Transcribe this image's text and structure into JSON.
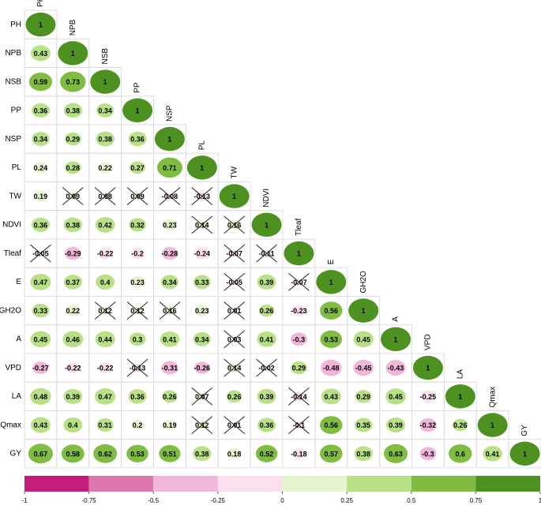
{
  "chart_data": {
    "type": "corrplot",
    "variables": [
      "PH",
      "NPB",
      "NSB",
      "PP",
      "NSP",
      "PL",
      "TW",
      "NDVI",
      "Tleaf",
      "E",
      "GH2O",
      "A",
      "VPD",
      "LA",
      "Qmax",
      "GY"
    ],
    "matrix": [
      [
        1
      ],
      [
        0.43,
        1
      ],
      [
        0.59,
        0.73,
        1
      ],
      [
        0.36,
        0.38,
        0.34,
        1
      ],
      [
        0.34,
        0.29,
        0.38,
        0.36,
        1
      ],
      [
        0.24,
        0.28,
        0.22,
        0.27,
        0.71,
        1
      ],
      [
        0.19,
        0.09,
        0.08,
        0.09,
        -0.08,
        -0.13,
        1
      ],
      [
        0.36,
        0.38,
        0.42,
        0.32,
        0.23,
        0.14,
        0.16,
        1
      ],
      [
        -0.05,
        -0.29,
        -0.22,
        -0.2,
        -0.28,
        -0.24,
        -0.07,
        -0.11,
        1
      ],
      [
        0.47,
        0.37,
        0.4,
        0.23,
        0.34,
        0.33,
        -0.05,
        0.39,
        -0.07,
        1
      ],
      [
        0.33,
        0.22,
        0.12,
        0.12,
        0.16,
        0.23,
        0.01,
        0.26,
        -0.23,
        0.56,
        1
      ],
      [
        0.45,
        0.46,
        0.44,
        0.3,
        0.41,
        0.34,
        0.03,
        0.41,
        -0.3,
        0.53,
        0.45,
        1
      ],
      [
        -0.27,
        -0.22,
        -0.22,
        -0.13,
        -0.31,
        -0.26,
        0.14,
        -0.02,
        0.29,
        -0.48,
        -0.45,
        -0.43,
        1
      ],
      [
        0.48,
        0.39,
        0.47,
        0.36,
        0.26,
        0.07,
        0.26,
        0.39,
        -0.14,
        0.43,
        0.29,
        0.45,
        -0.25,
        1
      ],
      [
        0.43,
        0.4,
        0.31,
        0.2,
        0.19,
        0.12,
        0.01,
        0.36,
        -0.1,
        0.56,
        0.35,
        0.39,
        -0.32,
        0.26,
        1
      ],
      [
        0.67,
        0.58,
        0.62,
        0.53,
        0.51,
        0.38,
        0.18,
        0.52,
        -0.18,
        0.57,
        0.38,
        0.63,
        -0.3,
        0.6,
        0.41,
        1
      ]
    ],
    "crossed": [
      [
        false
      ],
      [
        false,
        false
      ],
      [
        false,
        false,
        false
      ],
      [
        false,
        false,
        false,
        false
      ],
      [
        false,
        false,
        false,
        false,
        false
      ],
      [
        false,
        false,
        false,
        false,
        false,
        false
      ],
      [
        false,
        true,
        true,
        true,
        true,
        true,
        false
      ],
      [
        false,
        false,
        false,
        false,
        false,
        true,
        true,
        false
      ],
      [
        true,
        false,
        false,
        false,
        false,
        false,
        true,
        true,
        false
      ],
      [
        false,
        false,
        false,
        false,
        false,
        false,
        true,
        false,
        true,
        false
      ],
      [
        false,
        false,
        true,
        true,
        true,
        false,
        true,
        false,
        false,
        false,
        false
      ],
      [
        false,
        false,
        false,
        false,
        false,
        false,
        true,
        false,
        false,
        false,
        false,
        false
      ],
      [
        false,
        false,
        false,
        true,
        false,
        false,
        true,
        true,
        false,
        false,
        false,
        false,
        false
      ],
      [
        false,
        false,
        false,
        false,
        false,
        true,
        false,
        false,
        true,
        false,
        false,
        false,
        false,
        false
      ],
      [
        false,
        false,
        false,
        false,
        false,
        true,
        true,
        false,
        true,
        false,
        false,
        false,
        false,
        false,
        false
      ],
      [
        false,
        false,
        false,
        false,
        false,
        false,
        false,
        false,
        false,
        false,
        false,
        false,
        false,
        false,
        false,
        false
      ]
    ],
    "colorbar_ticks": [
      -1,
      -0.75,
      -0.5,
      -0.25,
      0,
      0.25,
      0.5,
      0.75,
      1
    ],
    "colorbar_colors": [
      "#c51b7d",
      "#de77ae",
      "#f1b6da",
      "#fde0ef",
      "#e6f5d0",
      "#b8e186",
      "#7fbc41",
      "#4d9221"
    ]
  }
}
